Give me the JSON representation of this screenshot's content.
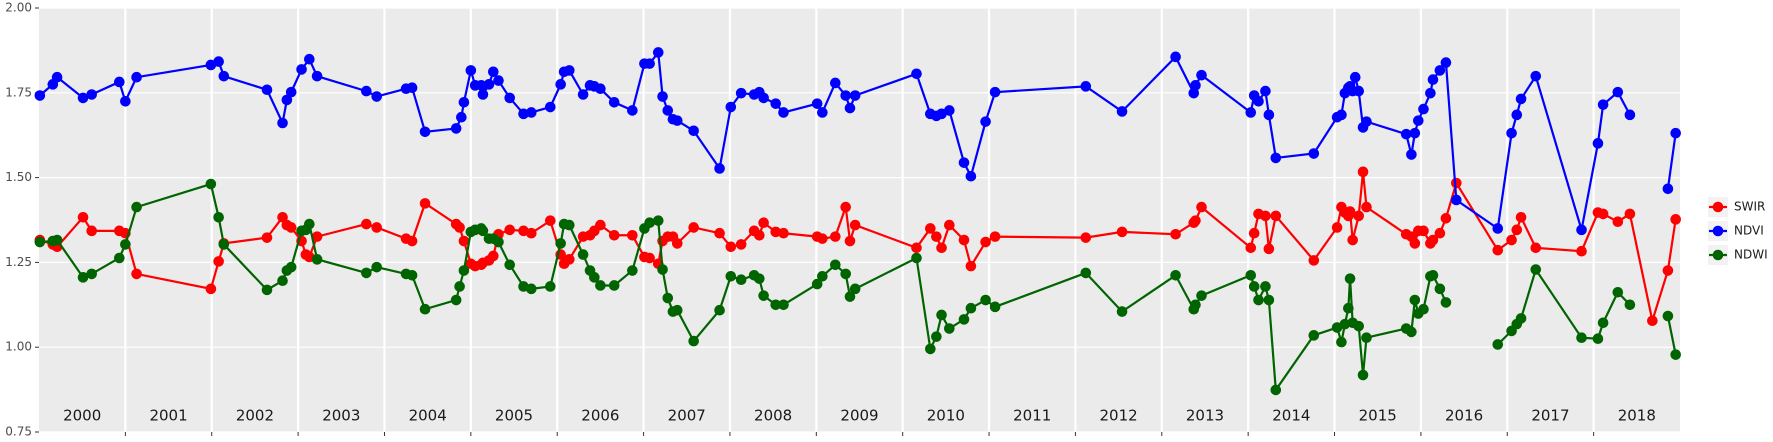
{
  "chart_data": {
    "type": "line",
    "xlim": [
      2000,
      2019
    ],
    "xticks": [
      2001,
      2002,
      2003,
      2004,
      2005,
      2006,
      2007,
      2008,
      2009,
      2010,
      2011,
      2012,
      2013,
      2014,
      2015,
      2016,
      2017,
      2018
    ],
    "year_labels": [
      "2000",
      "2001",
      "2002",
      "2003",
      "2004",
      "2005",
      "2006",
      "2007",
      "2008",
      "2009",
      "2010",
      "2011",
      "2012",
      "2013",
      "2014",
      "2015",
      "2016",
      "2017",
      "2018"
    ],
    "ylim": [
      0.75,
      2.0
    ],
    "yticks": [
      0.75,
      {
        "value": 1.0,
        "label": "1.00"
      },
      1.25,
      {
        "value": 1.5,
        "label": "1.50"
      },
      1.75,
      {
        "value": 2.0,
        "label": "2.00"
      }
    ],
    "grid": true,
    "legend": "right",
    "series": [
      {
        "name": "SWIR",
        "color": "#ff0000",
        "x": [
          2000.01,
          2000.16,
          2000.21,
          2000.51,
          2000.61,
          2000.93,
          2001.0,
          2001.13,
          2001.99,
          2002.08,
          2002.14,
          2002.64,
          2002.82,
          2002.87,
          2002.92,
          2003.04,
          2003.09,
          2003.13,
          2003.22,
          2003.79,
          2003.91,
          2004.25,
          2004.32,
          2004.47,
          2004.83,
          2004.87,
          2004.92,
          2005.0,
          2005.05,
          2005.12,
          2005.14,
          2005.21,
          2005.26,
          2005.32,
          2005.45,
          2005.61,
          2005.7,
          2005.92,
          2006.04,
          2006.08,
          2006.14,
          2006.3,
          2006.38,
          2006.43,
          2006.5,
          2006.66,
          2006.87,
          2007.01,
          2007.07,
          2007.17,
          2007.22,
          2007.28,
          2007.34,
          2007.39,
          2007.58,
          2007.88,
          2008.01,
          2008.13,
          2008.28,
          2008.34,
          2008.39,
          2008.53,
          2008.62,
          2009.01,
          2009.07,
          2009.22,
          2009.34,
          2009.39,
          2009.45,
          2010.16,
          2010.32,
          2010.39,
          2010.45,
          2010.54,
          2010.71,
          2010.79,
          2010.96,
          2011.07,
          2012.12,
          2012.54,
          2013.16,
          2013.37,
          2013.39,
          2013.46,
          2014.03,
          2014.07,
          2014.12,
          2014.2,
          2014.24,
          2014.32,
          2014.76,
          2015.03,
          2015.08,
          2015.12,
          2015.16,
          2015.18,
          2015.21,
          2015.28,
          2015.33,
          2015.37,
          2015.83,
          2015.89,
          2015.93,
          2015.97,
          2016.03,
          2016.11,
          2016.14,
          2016.22,
          2016.29,
          2016.41,
          2016.89,
          2017.05,
          2017.11,
          2017.16,
          2017.33,
          2017.86,
          2018.05,
          2018.11,
          2018.28,
          2018.42,
          2018.68,
          2018.86,
          2018.95
        ],
        "values": [
          1.316,
          1.303,
          1.296,
          1.383,
          1.343,
          1.343,
          1.336,
          1.216,
          1.172,
          1.253,
          1.306,
          1.323,
          1.383,
          1.36,
          1.353,
          1.313,
          1.273,
          1.266,
          1.326,
          1.363,
          1.353,
          1.32,
          1.313,
          1.424,
          1.363,
          1.353,
          1.313,
          1.246,
          1.239,
          1.243,
          1.249,
          1.256,
          1.269,
          1.333,
          1.346,
          1.343,
          1.336,
          1.373,
          1.273,
          1.246,
          1.259,
          1.326,
          1.33,
          1.343,
          1.36,
          1.33,
          1.33,
          1.266,
          1.263,
          1.246,
          1.313,
          1.326,
          1.326,
          1.306,
          1.353,
          1.336,
          1.296,
          1.303,
          1.343,
          1.33,
          1.367,
          1.34,
          1.336,
          1.326,
          1.32,
          1.326,
          1.413,
          1.313,
          1.36,
          1.293,
          1.35,
          1.326,
          1.293,
          1.36,
          1.316,
          1.239,
          1.31,
          1.326,
          1.323,
          1.34,
          1.333,
          1.367,
          1.373,
          1.413,
          1.293,
          1.336,
          1.393,
          1.387,
          1.29,
          1.387,
          1.256,
          1.353,
          1.413,
          1.397,
          1.387,
          1.4,
          1.316,
          1.387,
          1.517,
          1.413,
          1.333,
          1.326,
          1.306,
          1.343,
          1.343,
          1.306,
          1.316,
          1.336,
          1.38,
          1.484,
          1.286,
          1.316,
          1.346,
          1.383,
          1.293,
          1.283,
          1.397,
          1.393,
          1.37,
          1.393,
          1.078,
          1.226,
          1.377
        ]
      },
      {
        "name": "NDVI",
        "color": "#0000ff",
        "x": [
          2000.01,
          2000.16,
          2000.21,
          2000.51,
          2000.61,
          2000.93,
          2001.0,
          2001.13,
          2001.99,
          2002.08,
          2002.14,
          2002.64,
          2002.82,
          2002.87,
          2002.92,
          2003.04,
          2003.13,
          2003.22,
          2003.79,
          2003.91,
          2004.25,
          2004.32,
          2004.47,
          2004.83,
          2004.89,
          2004.92,
          2005.0,
          2005.05,
          2005.12,
          2005.14,
          2005.21,
          2005.26,
          2005.32,
          2005.45,
          2005.61,
          2005.7,
          2005.92,
          2006.04,
          2006.08,
          2006.14,
          2006.3,
          2006.38,
          2006.43,
          2006.5,
          2006.66,
          2006.87,
          2007.01,
          2007.07,
          2007.17,
          2007.22,
          2007.28,
          2007.34,
          2007.39,
          2007.58,
          2007.88,
          2008.01,
          2008.13,
          2008.28,
          2008.34,
          2008.39,
          2008.53,
          2008.62,
          2009.01,
          2009.07,
          2009.22,
          2009.34,
          2009.39,
          2009.45,
          2010.16,
          2010.32,
          2010.39,
          2010.45,
          2010.54,
          2010.71,
          2010.79,
          2010.96,
          2011.07,
          2012.12,
          2012.54,
          2013.16,
          2013.37,
          2013.39,
          2013.46,
          2014.03,
          2014.07,
          2014.12,
          2014.2,
          2014.24,
          2014.32,
          2014.76,
          2015.03,
          2015.08,
          2015.12,
          2015.16,
          2015.18,
          2015.21,
          2015.24,
          2015.28,
          2015.33,
          2015.37,
          2015.83,
          2015.89,
          2015.93,
          2015.97,
          2016.03,
          2016.11,
          2016.14,
          2016.22,
          2016.29,
          2016.41,
          2016.89,
          2017.05,
          2017.11,
          2017.16,
          2017.33,
          2017.86,
          2018.05,
          2018.11,
          2018.28,
          2018.42,
          2018.68,
          2018.86,
          2018.95
        ],
        "values": [
          1.742,
          1.775,
          1.796,
          1.735,
          1.745,
          1.782,
          1.725,
          1.796,
          1.832,
          1.842,
          1.799,
          1.759,
          1.661,
          1.729,
          1.752,
          1.819,
          1.849,
          1.799,
          1.755,
          1.739,
          1.762,
          1.765,
          1.635,
          1.645,
          1.678,
          1.722,
          1.816,
          1.772,
          1.772,
          1.745,
          1.775,
          1.812,
          1.786,
          1.735,
          1.688,
          1.692,
          1.708,
          1.775,
          1.812,
          1.816,
          1.745,
          1.772,
          1.769,
          1.762,
          1.722,
          1.698,
          1.836,
          1.836,
          1.869,
          1.739,
          1.698,
          1.672,
          1.668,
          1.638,
          1.527,
          1.708,
          1.749,
          1.745,
          1.752,
          1.735,
          1.718,
          1.692,
          1.718,
          1.692,
          1.779,
          1.742,
          1.705,
          1.742,
          1.806,
          1.688,
          1.682,
          1.688,
          1.698,
          1.544,
          1.504,
          1.665,
          1.752,
          1.769,
          1.695,
          1.856,
          1.749,
          1.772,
          1.802,
          1.692,
          1.742,
          1.725,
          1.755,
          1.685,
          1.558,
          1.571,
          1.678,
          1.685,
          1.749,
          1.765,
          1.769,
          1.755,
          1.796,
          1.755,
          1.648,
          1.665,
          1.628,
          1.568,
          1.631,
          1.668,
          1.702,
          1.749,
          1.789,
          1.816,
          1.839,
          1.434,
          1.35,
          1.631,
          1.685,
          1.732,
          1.799,
          1.346,
          1.601,
          1.715,
          1.752,
          1.685,
          null,
          1.467,
          1.631
        ]
      },
      {
        "name": "NDWI",
        "color": "#006400",
        "x": [
          2000.01,
          2000.16,
          2000.21,
          2000.51,
          2000.61,
          2000.93,
          2001.0,
          2001.13,
          2001.99,
          2002.08,
          2002.14,
          2002.64,
          2002.82,
          2002.87,
          2002.92,
          2003.04,
          2003.09,
          2003.13,
          2003.22,
          2003.79,
          2003.91,
          2004.25,
          2004.32,
          2004.47,
          2004.83,
          2004.87,
          2004.92,
          2005.0,
          2005.05,
          2005.12,
          2005.14,
          2005.21,
          2005.26,
          2005.32,
          2005.45,
          2005.61,
          2005.7,
          2005.92,
          2006.04,
          2006.08,
          2006.14,
          2006.3,
          2006.38,
          2006.43,
          2006.5,
          2006.66,
          2006.87,
          2007.01,
          2007.07,
          2007.17,
          2007.22,
          2007.28,
          2007.34,
          2007.39,
          2007.58,
          2007.88,
          2008.01,
          2008.13,
          2008.28,
          2008.34,
          2008.39,
          2008.53,
          2008.62,
          2009.01,
          2009.07,
          2009.22,
          2009.34,
          2009.39,
          2009.45,
          2010.16,
          2010.32,
          2010.39,
          2010.45,
          2010.54,
          2010.71,
          2010.79,
          2010.96,
          2011.07,
          2012.12,
          2012.54,
          2013.16,
          2013.37,
          2013.39,
          2013.46,
          2014.03,
          2014.07,
          2014.12,
          2014.2,
          2014.24,
          2014.32,
          2014.76,
          2015.03,
          2015.08,
          2015.12,
          2015.16,
          2015.18,
          2015.21,
          2015.28,
          2015.33,
          2015.37,
          2015.83,
          2015.89,
          2015.93,
          2015.97,
          2016.03,
          2016.11,
          2016.14,
          2016.22,
          2016.29,
          2016.41,
          2016.89,
          2017.05,
          2017.11,
          2017.16,
          2017.33,
          2017.86,
          2018.05,
          2018.11,
          2018.28,
          2018.42,
          2018.68,
          2018.86,
          2018.95
        ],
        "values": [
          1.31,
          1.313,
          1.316,
          1.206,
          1.216,
          1.263,
          1.303,
          1.413,
          1.481,
          1.383,
          1.303,
          1.169,
          1.196,
          1.226,
          1.236,
          1.343,
          1.346,
          1.363,
          1.259,
          1.219,
          1.236,
          1.216,
          1.212,
          1.112,
          1.139,
          1.179,
          1.226,
          1.34,
          1.346,
          1.35,
          1.343,
          1.32,
          1.32,
          1.31,
          1.243,
          1.179,
          1.172,
          1.179,
          1.306,
          1.363,
          1.36,
          1.273,
          1.226,
          1.206,
          1.182,
          1.182,
          1.226,
          1.35,
          1.367,
          1.373,
          1.229,
          1.145,
          1.105,
          1.109,
          1.018,
          1.109,
          1.209,
          1.199,
          1.212,
          1.202,
          1.152,
          1.125,
          1.125,
          1.186,
          1.209,
          1.243,
          1.216,
          1.149,
          1.172,
          1.263,
          0.995,
          1.031,
          1.095,
          1.055,
          1.082,
          1.115,
          1.139,
          1.119,
          1.219,
          1.105,
          1.212,
          1.112,
          1.125,
          1.152,
          1.212,
          1.179,
          1.139,
          1.179,
          1.139,
          0.874,
          1.035,
          1.058,
          1.015,
          1.068,
          1.115,
          1.202,
          1.072,
          1.062,
          0.918,
          1.028,
          1.055,
          1.045,
          1.139,
          1.099,
          1.112,
          1.209,
          1.212,
          1.172,
          1.132,
          null,
          1.008,
          1.048,
          1.068,
          1.085,
          1.229,
          1.028,
          1.025,
          1.072,
          1.162,
          1.125,
          null,
          1.092,
          0.978
        ]
      }
    ]
  }
}
